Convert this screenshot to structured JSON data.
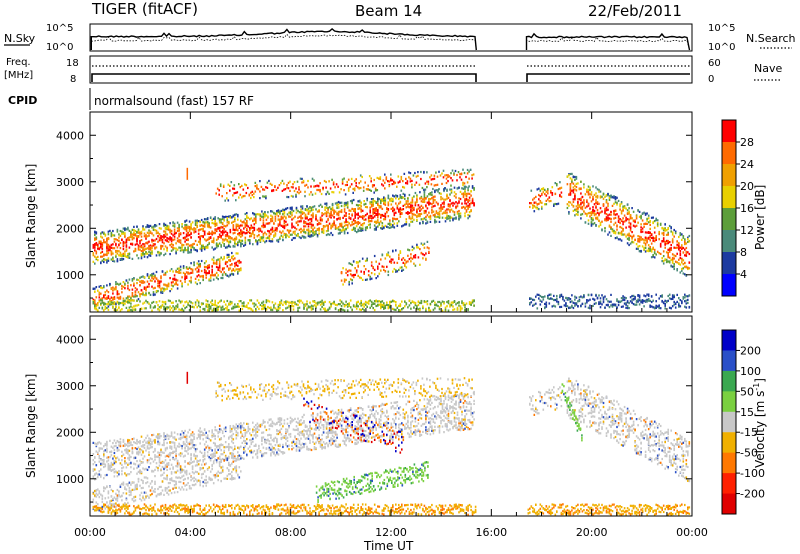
{
  "header": {
    "title": "TIGER (fitACF)",
    "beam": "Beam 14",
    "date": "22/Feb/2011"
  },
  "labels": {
    "nsky": "N.Sky",
    "nsearch": "N.Search",
    "freq": "Freq.",
    "mhz": "[MHz]",
    "nave": "Nave",
    "cpid": "CPID",
    "cpid_value": "normalsound (fast) 157 RF",
    "xlabel": "Time UT",
    "ylabel": "Slant Range [km]",
    "noise_ticks_left": [
      "10^5",
      "10^0"
    ],
    "noise_ticks_right": [
      "10^5",
      "10^0"
    ],
    "freq_ticks": [
      "18",
      "8"
    ],
    "nave_ticks": [
      "60",
      "0"
    ]
  },
  "chart_data": [
    {
      "type": "heatmap",
      "name": "power-panel",
      "ylabel": "Slant Range [km]",
      "colorbar_label": "Power [dB]",
      "colorbar_ticks": [
        "28",
        "24",
        "20",
        "16",
        "12",
        "8",
        "4"
      ],
      "colorbar_colors": [
        "#ff0000",
        "#ff6a00",
        "#f0a000",
        "#e8d000",
        "#5c9e3a",
        "#4a8a7a",
        "#1c3aa0",
        "#0000ff"
      ],
      "xlim": [
        0,
        24
      ],
      "ylim": [
        200,
        4500
      ],
      "x_ticks": [
        "00:00",
        "04:00",
        "08:00",
        "12:00",
        "16:00",
        "20:00",
        "00:00"
      ],
      "y_ticks": [
        1000,
        2000,
        3000,
        4000
      ],
      "data_gap_hours": [
        15.4,
        17.4
      ]
    },
    {
      "type": "heatmap",
      "name": "velocity-panel",
      "ylabel": "Slant Range [km]",
      "colorbar_label": "Velocity [m s^-1]",
      "colorbar_ticks": [
        "200",
        "100",
        "50",
        "15",
        "-15",
        "-50",
        "-100",
        "-200"
      ],
      "colorbar_colors": [
        "#0000c8",
        "#2a50c8",
        "#3aa850",
        "#7ad040",
        "#c8c8c8",
        "#f0b000",
        "#ff7800",
        "#ff2000",
        "#e00000"
      ],
      "xlim": [
        0,
        24
      ],
      "ylim": [
        200,
        4500
      ],
      "x_ticks": [
        "00:00",
        "04:00",
        "08:00",
        "12:00",
        "16:00",
        "20:00",
        "00:00"
      ],
      "y_ticks": [
        1000,
        2000,
        3000,
        4000
      ],
      "data_gap_hours": [
        15.4,
        17.4
      ]
    }
  ]
}
